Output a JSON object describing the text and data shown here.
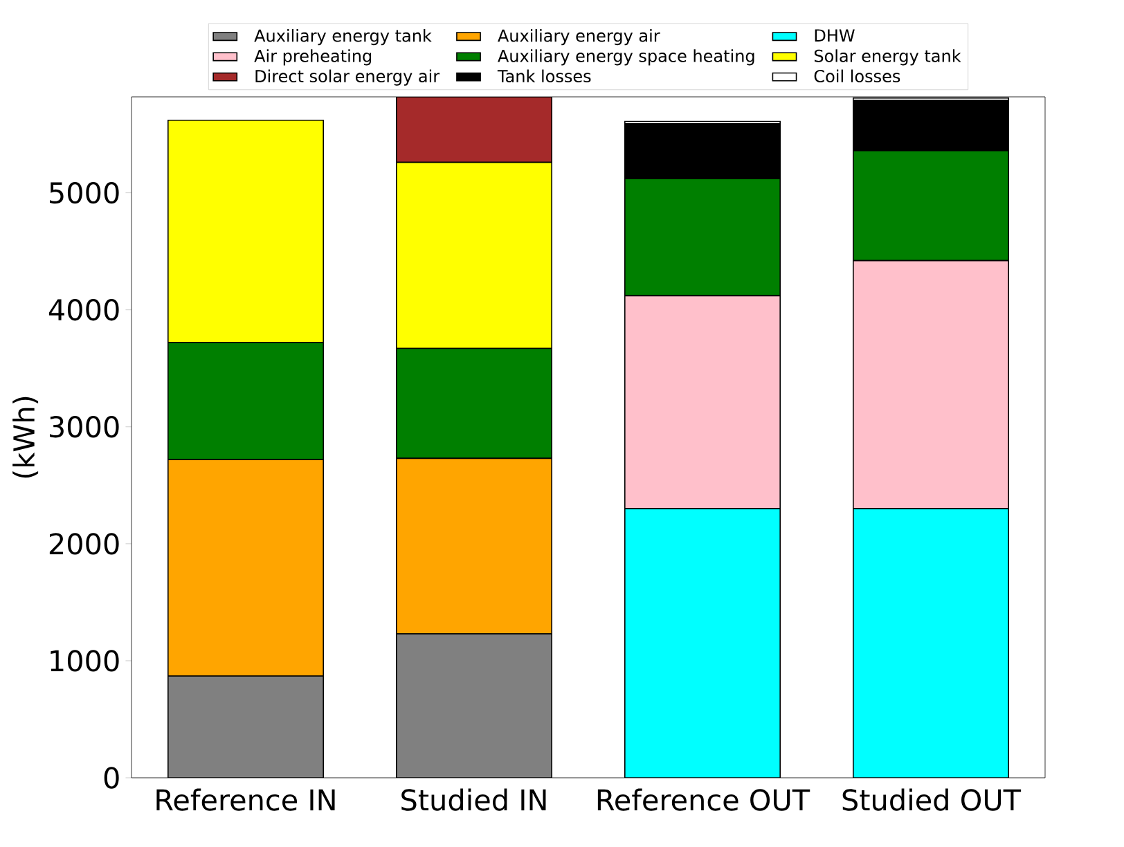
{
  "chart_data": {
    "type": "bar",
    "stacked": true,
    "ylabel": "(kWh)",
    "categories": [
      "Reference IN",
      "Studied IN",
      "Reference OUT",
      "Studied OUT"
    ],
    "series": [
      {
        "name": "Auxiliary energy tank",
        "color": "#808080",
        "values": [
          870,
          1230,
          0,
          0
        ]
      },
      {
        "name": "Auxiliary energy air",
        "color": "#ffa500",
        "values": [
          1850,
          1500,
          0,
          0
        ]
      },
      {
        "name": "DHW",
        "color": "#00ffff",
        "values": [
          0,
          0,
          2300,
          2300
        ]
      },
      {
        "name": "Air preheating",
        "color": "#ffc0cb",
        "values": [
          0,
          0,
          1820,
          2120
        ]
      },
      {
        "name": "Auxiliary energy space heating",
        "color": "#007f00",
        "values": [
          1000,
          940,
          1000,
          940
        ]
      },
      {
        "name": "Solar energy tank",
        "color": "#ffff00",
        "values": [
          1900,
          1590,
          0,
          0
        ]
      },
      {
        "name": "Direct solar energy air",
        "color": "#a52a2a",
        "values": [
          0,
          560,
          0,
          0
        ]
      },
      {
        "name": "Tank losses",
        "color": "#000000",
        "values": [
          0,
          0,
          470,
          430
        ]
      },
      {
        "name": "Coil losses",
        "color": "#ffffff",
        "values": [
          0,
          0,
          20,
          20
        ]
      }
    ],
    "ylim": [
      0,
      5820
    ],
    "yticks": [
      0,
      1000,
      2000,
      3000,
      4000,
      5000
    ],
    "legend": "top",
    "grid": false
  }
}
